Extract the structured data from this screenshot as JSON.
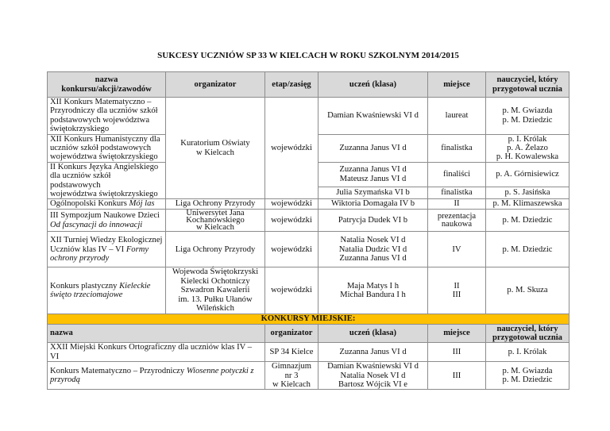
{
  "title": "SUKCESY UCZNIÓW SP 33 W KIELCACH W ROKU SZKOLNYM 2014/2015",
  "colors": {
    "header_bg": "#d9d9d9",
    "section_bg": "#ffc000"
  },
  "headers": {
    "name": "nazwa konkursu/akcji/zawodów",
    "organizer": "organizator",
    "stage": "etap/zasięg",
    "student": "uczeń (klasa)",
    "place": "miejsce",
    "teacher1": "nauczyciel, który",
    "teacher2": "przygotował ucznia"
  },
  "rows": [
    {
      "name": [
        "XII Konkurs Matematyczno –",
        "Przyrodniczy dla uczniów szkół",
        "podstawowych województwa",
        "świętokrzyskiego"
      ],
      "student": [
        "Damian Kwaśniewski VI d"
      ],
      "place": [
        "laureat"
      ],
      "teacher": [
        "p. M. Gwiazda",
        "p. M. Dziedzic"
      ]
    },
    {
      "name": [
        "XII Konkurs Humanistyczny dla",
        "uczniów szkół podstawowych",
        "województwa świętokrzyskiego"
      ],
      "student": [
        "Zuzanna Janus VI d"
      ],
      "place": [
        "finalistka"
      ],
      "teacher": [
        "p. I. Królak",
        "p. A. Żelazo",
        "p. H. Kowalewska"
      ]
    },
    {
      "name": [
        "II Konkurs Języka Angielskiego",
        "dla uczniów szkół podstawowych",
        "województwa świętokrzyskiego"
      ],
      "student": [
        "Zuzanna Janus VI d",
        "Mateusz Janus VI d"
      ],
      "place": [
        "finaliści"
      ],
      "teacher": [
        "p. A. Górnisiewicz"
      ],
      "student2": [
        "Julia Szymańska VI b"
      ],
      "place2": [
        "finalistka"
      ],
      "teacher2": [
        "p. S. Jasińska"
      ]
    },
    {
      "name_plain": "Ogólnopolski Konkurs ",
      "name_italic": "Mój las",
      "organizer": [
        "Liga Ochrony Przyrody"
      ],
      "stage": "wojewódzki",
      "student": [
        "Wiktoria Domagała IV b"
      ],
      "place": [
        "II"
      ],
      "teacher": [
        "p. M. Klimaszewska"
      ]
    },
    {
      "name_plain": "III Sympozjum Naukowe Dzieci",
      "name_italic": "Od fascynacji do innowacji",
      "organizer": [
        "Uniwersytet Jana",
        "Kochanowskiego",
        "w Kielcach"
      ],
      "stage": "wojewódzki",
      "student": [
        "Patrycja Dudek VI b"
      ],
      "place": [
        "prezentacja",
        "naukowa"
      ],
      "teacher": [
        "p. M. Dziedzic"
      ]
    },
    {
      "name_plain": "XII Turniej Wiedzy Ekologicznej Uczniów klas IV – VI ",
      "name_italic": "Formy ochrony przyrody",
      "organizer": [
        "Liga Ochrony Przyrody"
      ],
      "stage": "wojewódzki",
      "student": [
        "Natalia Nosek VI d",
        "Natalia Dudzic VI d",
        "Zuzanna Janus VI d"
      ],
      "place": [
        "IV"
      ],
      "teacher": [
        "p. M. Dziedzic"
      ]
    },
    {
      "name_plain": "Konkurs plastyczny ",
      "name_italic": "Kieleckie święto trzeciomajowe",
      "organizer": [
        "Wojewoda Świętokrzyski",
        "Kielecki Ochotniczy",
        "Szwadron Kawalerii",
        "im. 13. Pułku Ułanów",
        "Wileńskich"
      ],
      "stage": "wojewódzki",
      "student": [
        "Maja Matys I h",
        "Michał Bandura I h"
      ],
      "place": [
        "II",
        "III"
      ],
      "teacher": [
        "p. M. Skuza"
      ]
    }
  ],
  "shared": {
    "organizer": [
      "Kuratorium Oświaty",
      "w Kielcach"
    ],
    "stage": "wojewódzki"
  },
  "city": {
    "section_label": "KONKURSY MIEJSKIE:",
    "headers": {
      "name": "nazwa",
      "organizer": "organizator",
      "student": "uczeń (klasa)",
      "place": "miejsce",
      "teacher1": "nauczyciel, który",
      "teacher2": "przygotował ucznia"
    },
    "rows": [
      {
        "name_plain": "XXII Miejski Konkurs Ortograficzny dla uczniów klas IV – VI",
        "name_italic": "",
        "organizer": [
          "SP 34 Kielce"
        ],
        "student": [
          "Zuzanna Janus VI d"
        ],
        "place": [
          "III"
        ],
        "teacher": [
          "p. I. Królak"
        ]
      },
      {
        "name_plain": "Konkurs Matematyczno – Przyrodniczy ",
        "name_italic": "Wiosenne potyczki z przyrodą",
        "organizer": [
          "Gimnazjum",
          "nr 3",
          "w Kielcach"
        ],
        "student": [
          "Damian Kwaśniewski VI d",
          "Natalia Nosek VI d",
          "Bartosz Wójcik VI e"
        ],
        "place": [
          "III"
        ],
        "teacher": [
          "p. M. Gwiazda",
          "p. M. Dziedzic"
        ]
      }
    ]
  }
}
